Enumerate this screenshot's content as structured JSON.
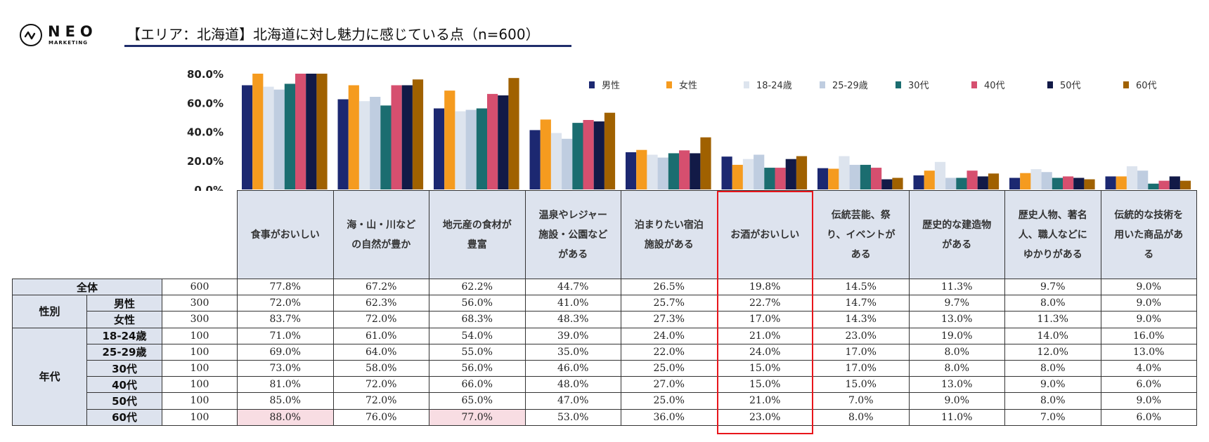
{
  "logo": {
    "name": "NEO",
    "sub": "MARKETING"
  },
  "header": {
    "title": "【エリア：北海道】北海道に対し魅力に感じている点（n=600）"
  },
  "colors": {
    "男性": "#1c2871",
    "女性": "#f59b1f",
    "18-24歳": "#dde4ee",
    "25-29歳": "#bfcde0",
    "30代": "#1b6d70",
    "40代": "#d64f6f",
    "50代": "#121a47",
    "60代": "#a06100",
    "header_fill": "#dde3ee",
    "highlight_cell": "#f8dde3",
    "highlight_box": "#e8151b",
    "title_underline": "#1f2d6b"
  },
  "chart_data": {
    "type": "bar",
    "title": "【エリア：北海道】北海道に対し魅力に感じている点（n=600）",
    "xlabel": "",
    "ylabel": "",
    "ylim": [
      0,
      80
    ],
    "yticks": [
      "0.0%",
      "20.0%",
      "40.0%",
      "60.0%",
      "80.0%"
    ],
    "legend_position": "top-right",
    "grid": false,
    "categories": [
      "食事がおいしい",
      "海・山・川などの自然が豊か",
      "地元産の食材が豊富",
      "温泉やレジャー施設・公園などがある",
      "泊まりたい宿泊施設がある",
      "お酒がおいしい",
      "伝統芸能、祭り、イベントがある",
      "歴史的な建造物がある",
      "歴史人物、著名人、職人などにゆかりがある",
      "伝統的な技術を用いた商品がある"
    ],
    "series": [
      {
        "name": "男性",
        "values": [
          72.0,
          62.3,
          56.0,
          41.0,
          25.7,
          22.7,
          14.7,
          9.7,
          8.0,
          9.0
        ]
      },
      {
        "name": "女性",
        "values": [
          83.7,
          72.0,
          68.3,
          48.3,
          27.3,
          17.0,
          14.3,
          13.0,
          11.3,
          9.0
        ]
      },
      {
        "name": "18-24歳",
        "values": [
          71.0,
          61.0,
          54.0,
          39.0,
          24.0,
          21.0,
          23.0,
          19.0,
          14.0,
          16.0
        ]
      },
      {
        "name": "25-29歳",
        "values": [
          69.0,
          64.0,
          55.0,
          35.0,
          22.0,
          24.0,
          17.0,
          8.0,
          12.0,
          13.0
        ]
      },
      {
        "name": "30代",
        "values": [
          73.0,
          58.0,
          56.0,
          46.0,
          25.0,
          15.0,
          17.0,
          8.0,
          8.0,
          4.0
        ]
      },
      {
        "name": "40代",
        "values": [
          81.0,
          72.0,
          66.0,
          48.0,
          27.0,
          15.0,
          15.0,
          13.0,
          9.0,
          6.0
        ]
      },
      {
        "name": "50代",
        "values": [
          85.0,
          72.0,
          65.0,
          47.0,
          25.0,
          21.0,
          7.0,
          9.0,
          8.0,
          9.0
        ]
      },
      {
        "name": "60代",
        "values": [
          88.0,
          76.0,
          77.0,
          53.0,
          36.0,
          23.0,
          8.0,
          11.0,
          7.0,
          6.0
        ]
      }
    ]
  },
  "table": {
    "headers": [
      [
        "食事がおいしい"
      ],
      [
        "海・山・川など",
        "の自然が豊か"
      ],
      [
        "地元産の食材が",
        "豊富"
      ],
      [
        "温泉やレジャー",
        "施設・公園など",
        "がある"
      ],
      [
        "泊まりたい宿泊",
        "施設がある"
      ],
      [
        "お酒がおいしい"
      ],
      [
        "伝統芸能、祭",
        "り、イベントが",
        "ある"
      ],
      [
        "歴史的な建造物",
        "がある"
      ],
      [
        "歴史人物、著名",
        "人、職人などに",
        "ゆかりがある"
      ],
      [
        "伝統的な技術を",
        "用いた商品があ",
        "る"
      ]
    ],
    "groups": {
      "total": "全体",
      "gender": "性別",
      "age": "年代"
    },
    "rows": [
      {
        "label": "全体",
        "n": "600",
        "values": [
          "77.8%",
          "67.2%",
          "62.2%",
          "44.7%",
          "26.5%",
          "19.8%",
          "14.5%",
          "11.3%",
          "9.7%",
          "9.0%"
        ]
      },
      {
        "label": "男性",
        "n": "300",
        "values": [
          "72.0%",
          "62.3%",
          "56.0%",
          "41.0%",
          "25.7%",
          "22.7%",
          "14.7%",
          "9.7%",
          "8.0%",
          "9.0%"
        ]
      },
      {
        "label": "女性",
        "n": "300",
        "values": [
          "83.7%",
          "72.0%",
          "68.3%",
          "48.3%",
          "27.3%",
          "17.0%",
          "14.3%",
          "13.0%",
          "11.3%",
          "9.0%"
        ]
      },
      {
        "label": "18-24歳",
        "n": "100",
        "values": [
          "71.0%",
          "61.0%",
          "54.0%",
          "39.0%",
          "24.0%",
          "21.0%",
          "23.0%",
          "19.0%",
          "14.0%",
          "16.0%"
        ]
      },
      {
        "label": "25-29歳",
        "n": "100",
        "values": [
          "69.0%",
          "64.0%",
          "55.0%",
          "35.0%",
          "22.0%",
          "24.0%",
          "17.0%",
          "8.0%",
          "12.0%",
          "13.0%"
        ]
      },
      {
        "label": "30代",
        "n": "100",
        "values": [
          "73.0%",
          "58.0%",
          "56.0%",
          "46.0%",
          "25.0%",
          "15.0%",
          "17.0%",
          "8.0%",
          "8.0%",
          "4.0%"
        ]
      },
      {
        "label": "40代",
        "n": "100",
        "values": [
          "81.0%",
          "72.0%",
          "66.0%",
          "48.0%",
          "27.0%",
          "15.0%",
          "15.0%",
          "13.0%",
          "9.0%",
          "6.0%"
        ]
      },
      {
        "label": "50代",
        "n": "100",
        "values": [
          "85.0%",
          "72.0%",
          "65.0%",
          "47.0%",
          "25.0%",
          "21.0%",
          "7.0%",
          "9.0%",
          "8.0%",
          "9.0%"
        ]
      },
      {
        "label": "60代",
        "n": "100",
        "values": [
          "88.0%",
          "76.0%",
          "77.0%",
          "53.0%",
          "36.0%",
          "23.0%",
          "8.0%",
          "11.0%",
          "7.0%",
          "6.0%"
        ]
      }
    ],
    "highlighted_cells": [
      [
        8,
        0
      ],
      [
        8,
        2
      ]
    ],
    "highlighted_column": 5
  }
}
